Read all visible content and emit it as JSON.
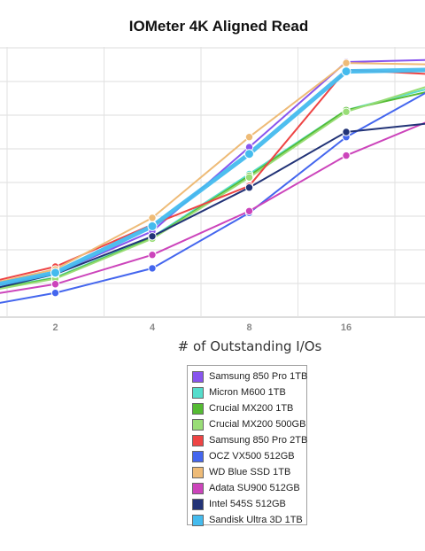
{
  "chart_data": {
    "type": "line",
    "title": "IOMeter 4K Aligned Read",
    "xlabel": "# of Outstanding I/Os",
    "ylabel": "",
    "x": [
      1,
      2,
      4,
      8,
      16,
      32
    ],
    "x_tick_labels": [
      "2",
      "4",
      "8",
      "16"
    ],
    "x_scale": "log2",
    "grid": true,
    "legend_position": "bottom",
    "series": [
      {
        "name": "Samsung 850 Pro 1TB",
        "color": "#8855ee",
        "values": [
          0.7,
          1.3,
          2.55,
          5.05,
          7.58,
          7.65
        ]
      },
      {
        "name": "Micron M600 1TB",
        "color": "#55ddcc",
        "values": [
          0.66,
          1.18,
          2.38,
          4.25,
          6.15,
          6.9
        ]
      },
      {
        "name": "Crucial MX200 1TB",
        "color": "#55bb33",
        "values": [
          0.64,
          1.16,
          2.35,
          4.2,
          6.15,
          6.8
        ]
      },
      {
        "name": "Crucial MX200 500GB",
        "color": "#99dd77",
        "values": [
          0.62,
          1.14,
          2.33,
          4.15,
          6.1,
          7.0
        ]
      },
      {
        "name": "Samsung 850 Pro 2TB",
        "color": "#ee4444",
        "values": [
          0.82,
          1.5,
          2.75,
          3.9,
          7.35,
          7.2
        ]
      },
      {
        "name": "OCZ VX500 512GB",
        "color": "#4466ee",
        "values": [
          0.2,
          0.72,
          1.45,
          3.1,
          5.35,
          6.95
        ]
      },
      {
        "name": "WD Blue SSD 1TB",
        "color": "#eebb77",
        "values": [
          0.78,
          1.42,
          2.95,
          5.35,
          7.55,
          7.5
        ]
      },
      {
        "name": "Adata SU900 512GB",
        "color": "#cc44bb",
        "values": [
          0.52,
          0.98,
          1.85,
          3.15,
          4.8,
          6.0
        ]
      },
      {
        "name": "Intel 545S 512GB",
        "color": "#223377",
        "values": [
          0.6,
          1.28,
          2.4,
          3.85,
          5.5,
          5.8
        ]
      },
      {
        "name": "Sandisk Ultra 3D 1TB",
        "color": "#44bbee",
        "values": [
          0.74,
          1.32,
          2.7,
          4.85,
          7.3,
          7.35
        ]
      }
    ]
  }
}
